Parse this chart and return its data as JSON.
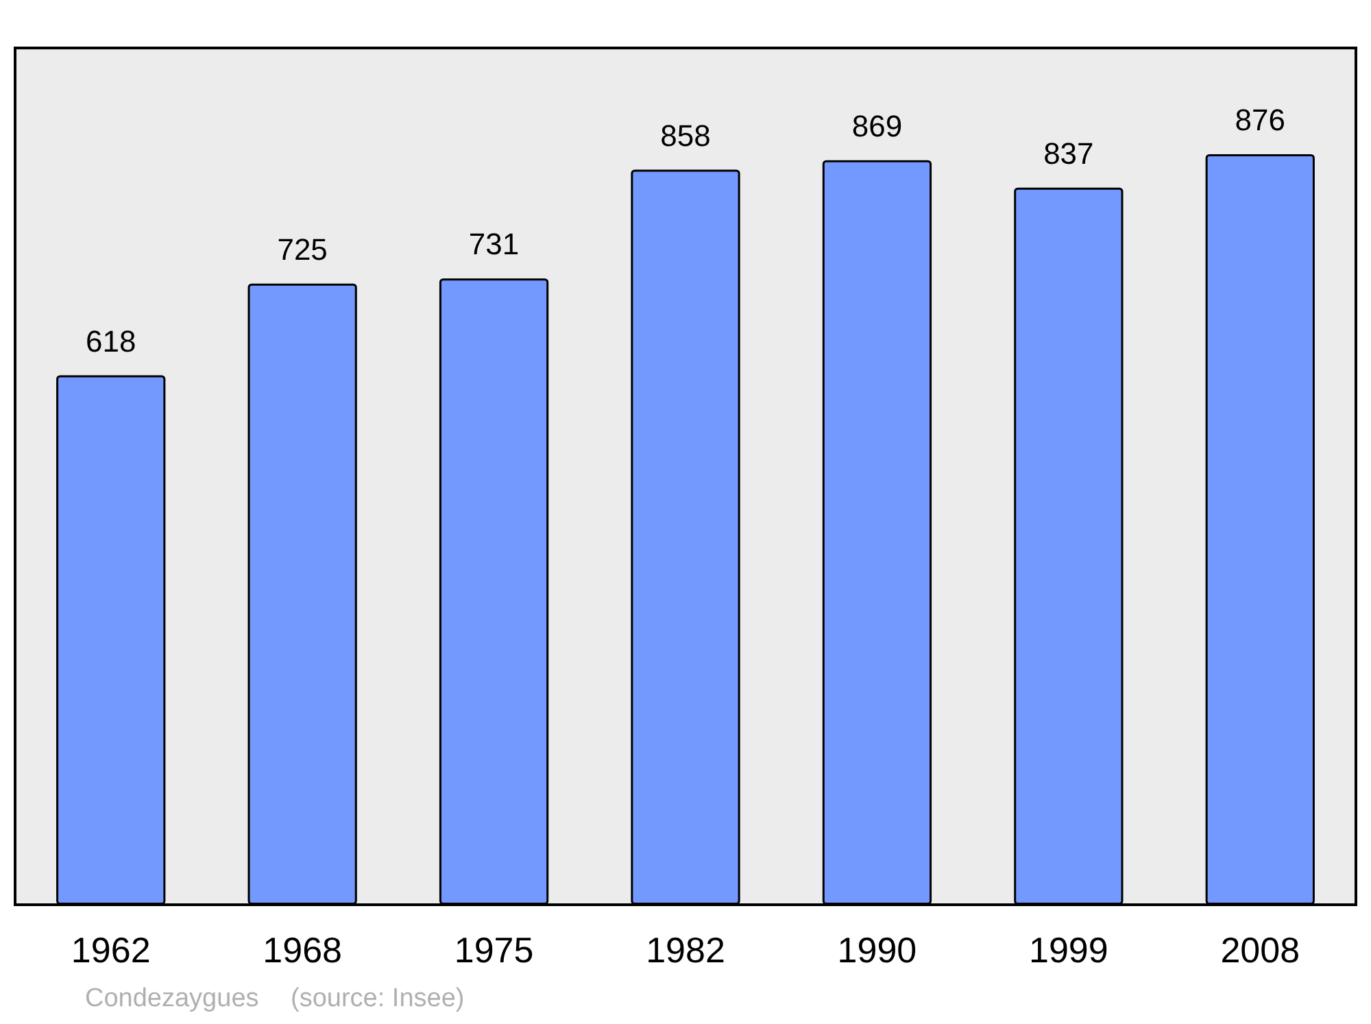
{
  "chart_data": {
    "type": "bar",
    "categories": [
      "1962",
      "1968",
      "1975",
      "1982",
      "1990",
      "1999",
      "2008"
    ],
    "values": [
      618,
      725,
      731,
      858,
      869,
      837,
      876
    ],
    "color": "#7399ff",
    "data_labels": true,
    "annotations": [
      "Condezaygues",
      "(source: Insee)"
    ]
  }
}
